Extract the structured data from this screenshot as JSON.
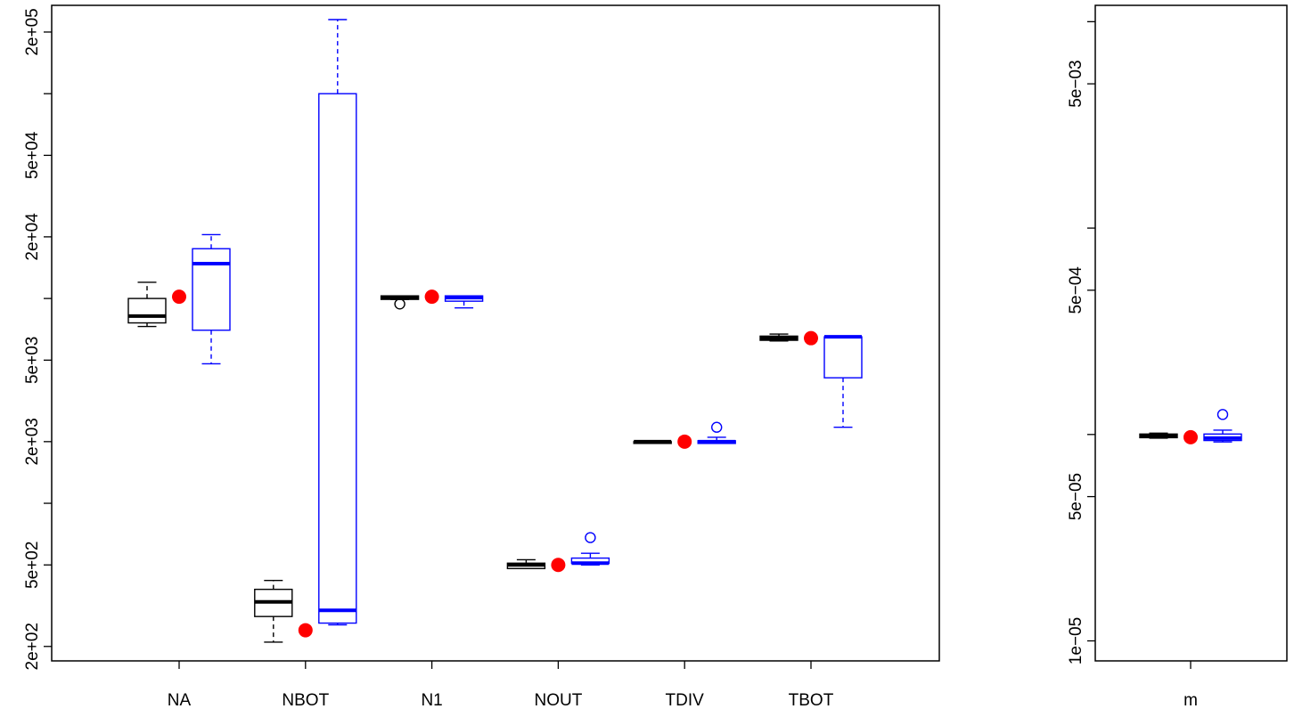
{
  "chart_data": [
    {
      "type": "box",
      "scale": "log",
      "ylim": [
        170,
        270000
      ],
      "y_tick_labels": [
        "2e+02",
        "5e+02",
        "2e+03",
        "5e+03",
        "2e+04",
        "5e+04",
        "2e+05"
      ],
      "y_tick_values": [
        200,
        500,
        2000,
        5000,
        20000,
        50000,
        200000
      ],
      "y_minor_tick_values": [
        1000,
        10000,
        100000
      ],
      "categories": [
        "NA",
        "NBOT",
        "N1",
        "NOUT",
        "TDIV",
        "TBOT"
      ],
      "colors": {
        "box_a": "#000000",
        "box_b": "#0000ff",
        "point": "#ff0000"
      },
      "series": [
        {
          "color": "#000000",
          "boxes": [
            {
              "min": 7300,
              "q1": 7600,
              "median": 8200,
              "q3": 10000,
              "max": 12000,
              "outliers": []
            },
            {
              "min": 210,
              "q1": 280,
              "median": 330,
              "q3": 380,
              "max": 420,
              "outliers": []
            },
            {
              "min": 9900,
              "q1": 9900,
              "median": 10100,
              "q3": 10300,
              "max": 10300,
              "outliers": [
                9400
              ]
            },
            {
              "min": 480,
              "q1": 480,
              "median": 500,
              "q3": 510,
              "max": 530,
              "outliers": []
            },
            {
              "min": 1990,
              "q1": 1990,
              "median": 2000,
              "q3": 2000,
              "max": 2010,
              "outliers": []
            },
            {
              "min": 6200,
              "q1": 6250,
              "median": 6400,
              "q3": 6550,
              "max": 6700,
              "outliers": []
            }
          ]
        },
        {
          "color": "#0000ff",
          "boxes": [
            {
              "min": 4800,
              "q1": 7000,
              "median": 14800,
              "q3": 17500,
              "max": 20500,
              "outliers": []
            },
            {
              "min": 255,
              "q1": 260,
              "median": 300,
              "q3": 100000,
              "max": 230000,
              "outliers": []
            },
            {
              "min": 9000,
              "q1": 9700,
              "median": 10100,
              "q3": 10300,
              "max": 10300,
              "outliers": []
            },
            {
              "min": 500,
              "q1": 510,
              "median": 510,
              "q3": 540,
              "max": 570,
              "outliers": [
                680
              ]
            },
            {
              "min": 1960,
              "q1": 1960,
              "median": 2000,
              "q3": 2020,
              "max": 2100,
              "outliers": [
                2350
              ]
            },
            {
              "min": 2350,
              "q1": 4100,
              "median": 6500,
              "q3": 6500,
              "max": 6500,
              "outliers": []
            }
          ]
        },
        {
          "type": "point",
          "color": "#ff0000",
          "values": [
            10200,
            240,
            10200,
            500,
            2000,
            6400
          ]
        }
      ]
    },
    {
      "type": "box",
      "scale": "log",
      "ylim": [
        8e-06,
        0.012
      ],
      "y_tick_labels": [
        "1e−05",
        "5e−05",
        "5e−04",
        "5e−03"
      ],
      "y_tick_values": [
        1e-05,
        5e-05,
        0.0005,
        0.005
      ],
      "y_minor_tick_values": [
        0.0001,
        0.001,
        0.01
      ],
      "categories": [
        "m"
      ],
      "series": [
        {
          "color": "#000000",
          "boxes": [
            {
              "min": 9.6e-05,
              "q1": 9.65e-05,
              "median": 9.85e-05,
              "q3": 0.0001005,
              "max": 0.0001015,
              "outliers": []
            }
          ]
        },
        {
          "color": "#0000ff",
          "boxes": [
            {
              "min": 9.2e-05,
              "q1": 9.35e-05,
              "median": 9.6e-05,
              "q3": 0.0001005,
              "max": 0.000105,
              "outliers": [
                0.000125
              ]
            }
          ]
        },
        {
          "type": "point",
          "color": "#ff0000",
          "values": [
            9.7e-05
          ]
        }
      ]
    }
  ]
}
